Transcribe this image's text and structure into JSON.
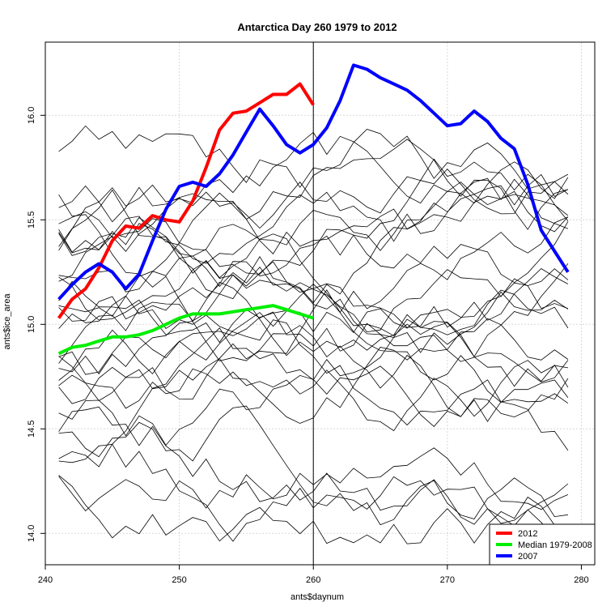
{
  "chart_data": {
    "type": "line",
    "title": "Antarctica Day 260 1979 to 2012",
    "xlabel": "ants$daynum",
    "ylabel": "ants$ice_area",
    "xlim": [
      240,
      281
    ],
    "ylim": [
      13.85,
      16.35
    ],
    "x_ticks": [
      "240",
      "250",
      "260",
      "270",
      "280"
    ],
    "y_ticks": [
      "14.0",
      "14.5",
      "15.0",
      "15.5",
      "16.0"
    ],
    "grid": true,
    "reference_line_x": 260,
    "legend_position": "bottom-right",
    "highlighted_series": [
      {
        "name": "2012",
        "color": "#ff0000",
        "x": [
          241,
          242,
          243,
          244,
          245,
          246,
          247,
          248,
          249,
          250,
          251,
          252,
          253,
          254,
          255,
          256,
          257,
          258,
          259,
          260
        ],
        "values": [
          15.03,
          15.12,
          15.17,
          15.27,
          15.4,
          15.47,
          15.46,
          15.52,
          15.5,
          15.49,
          15.59,
          15.75,
          15.93,
          16.01,
          16.02,
          16.06,
          16.1,
          16.1,
          16.15,
          16.05
        ]
      },
      {
        "name": "Median 1979-2008",
        "color": "#00ee00",
        "x": [
          241,
          242,
          243,
          244,
          245,
          246,
          247,
          248,
          249,
          250,
          251,
          252,
          253,
          254,
          255,
          256,
          257,
          258,
          259,
          260
        ],
        "values": [
          14.86,
          14.89,
          14.9,
          14.92,
          14.94,
          14.94,
          14.95,
          14.97,
          15.0,
          15.03,
          15.05,
          15.05,
          15.05,
          15.06,
          15.07,
          15.08,
          15.09,
          15.07,
          15.05,
          15.03
        ]
      },
      {
        "name": "2007",
        "color": "#0000ff",
        "x": [
          241,
          242,
          243,
          244,
          245,
          246,
          247,
          248,
          249,
          250,
          251,
          252,
          253,
          254,
          255,
          256,
          257,
          258,
          259,
          260,
          261,
          262,
          263,
          264,
          265,
          266,
          267,
          268,
          269,
          270,
          271,
          272,
          273,
          274,
          275,
          276,
          277,
          278,
          279
        ],
        "values": [
          15.12,
          15.19,
          15.25,
          15.29,
          15.25,
          15.17,
          15.24,
          15.4,
          15.55,
          15.66,
          15.68,
          15.66,
          15.72,
          15.81,
          15.92,
          16.03,
          15.95,
          15.86,
          15.82,
          15.86,
          15.94,
          16.07,
          16.24,
          16.22,
          16.18,
          16.15,
          16.12,
          16.07,
          16.01,
          15.95,
          15.96,
          16.02,
          15.97,
          15.89,
          15.84,
          15.67,
          15.45,
          15.35,
          15.25
        ]
      }
    ],
    "background_series_count": 30
  }
}
